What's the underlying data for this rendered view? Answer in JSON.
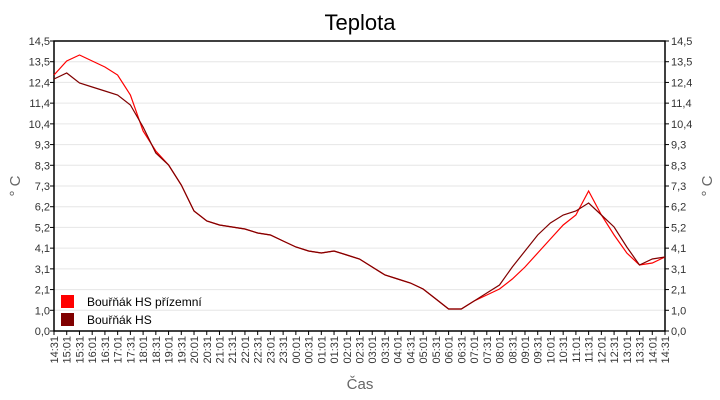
{
  "chart_data": {
    "type": "line",
    "title": "Teplota",
    "xlabel": "Čas",
    "ylabel": "° C",
    "ylim": [
      0,
      14.5
    ],
    "yticks": [
      "0,0",
      "1,0",
      "2,1",
      "3,1",
      "4,1",
      "5,2",
      "6,2",
      "7,3",
      "8,3",
      "9,3",
      "10,4",
      "11,4",
      "12,4",
      "13,5",
      "14,5"
    ],
    "grid": true,
    "legend_position": "bottom-left",
    "x": [
      "14:31",
      "15:01",
      "15:31",
      "16:01",
      "16:31",
      "17:01",
      "17:31",
      "18:01",
      "18:31",
      "19:01",
      "19:31",
      "20:01",
      "20:31",
      "21:01",
      "21:31",
      "22:01",
      "22:31",
      "23:01",
      "23:31",
      "00:01",
      "00:31",
      "01:01",
      "01:31",
      "02:01",
      "02:31",
      "03:01",
      "03:31",
      "04:01",
      "04:31",
      "05:01",
      "05:31",
      "06:01",
      "06:31",
      "07:01",
      "07:31",
      "08:01",
      "08:31",
      "09:01",
      "09:31",
      "10:01",
      "10:31",
      "11:01",
      "11:31",
      "12:01",
      "12:31",
      "13:01",
      "13:31",
      "14:01",
      "14:31"
    ],
    "series": [
      {
        "name": "Bouřňák HS přízemní",
        "color": "#ff0000",
        "values": [
          12.8,
          13.5,
          13.8,
          13.5,
          13.2,
          12.8,
          11.8,
          10.0,
          9.0,
          8.3,
          7.3,
          6.0,
          5.5,
          5.3,
          5.2,
          5.1,
          4.9,
          4.8,
          4.5,
          4.2,
          4.0,
          3.9,
          4.0,
          3.8,
          3.6,
          3.2,
          2.8,
          2.6,
          2.4,
          2.1,
          1.6,
          1.1,
          1.1,
          1.5,
          1.8,
          2.1,
          2.6,
          3.2,
          3.9,
          4.6,
          5.3,
          5.8,
          7.0,
          5.8,
          4.8,
          3.9,
          3.3,
          3.4,
          3.7
        ]
      },
      {
        "name": "Bouřňák HS",
        "color": "#800000",
        "values": [
          12.6,
          12.9,
          12.4,
          12.2,
          12.0,
          11.8,
          11.3,
          10.2,
          8.9,
          8.3,
          7.3,
          6.0,
          5.5,
          5.3,
          5.2,
          5.1,
          4.9,
          4.8,
          4.5,
          4.2,
          4.0,
          3.9,
          4.0,
          3.8,
          3.6,
          3.2,
          2.8,
          2.6,
          2.4,
          2.1,
          1.6,
          1.1,
          1.1,
          1.5,
          1.9,
          2.3,
          3.2,
          4.0,
          4.8,
          5.4,
          5.8,
          6.0,
          6.4,
          5.8,
          5.2,
          4.2,
          3.3,
          3.6,
          3.7
        ]
      }
    ]
  }
}
